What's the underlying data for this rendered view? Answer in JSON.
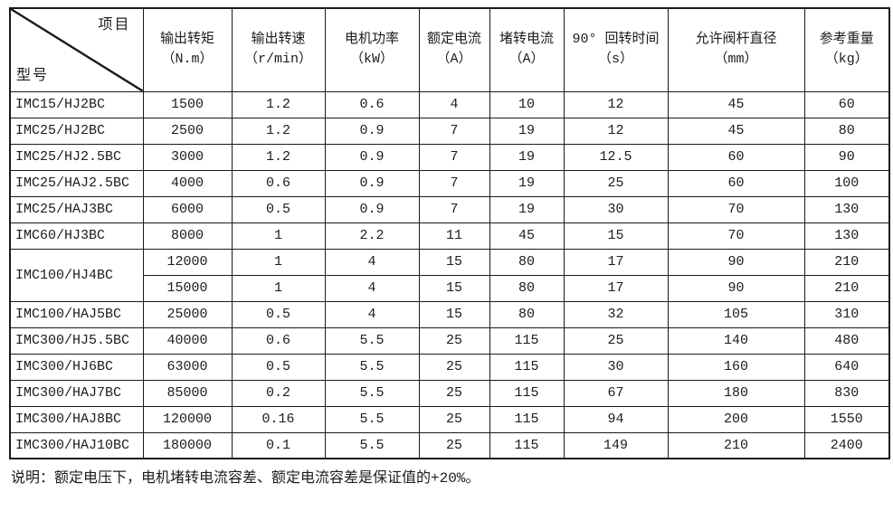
{
  "table": {
    "corner": {
      "top_right": "项目",
      "bottom_left": "型号"
    },
    "columns": [
      {
        "label": "输出转矩",
        "unit": "（N.m）"
      },
      {
        "label": "输出转速",
        "unit": "（r/min）"
      },
      {
        "label": "电机功率",
        "unit": "（kW）"
      },
      {
        "label": "额定电流",
        "unit": "（A）"
      },
      {
        "label": "堵转电流",
        "unit": "（A）"
      },
      {
        "label": "90° 回转时间",
        "unit": "（s）"
      },
      {
        "label": "允许阀杆直径",
        "unit": "（mm）"
      },
      {
        "label": "参考重量",
        "unit": "（kg）"
      }
    ],
    "rows": [
      {
        "model": "IMC15/HJ2BC",
        "model_rowspan": 1,
        "values": [
          "1500",
          "1.2",
          "0.6",
          "4",
          "10",
          "12",
          "45",
          "60"
        ]
      },
      {
        "model": "IMC25/HJ2BC",
        "model_rowspan": 1,
        "values": [
          "2500",
          "1.2",
          "0.9",
          "7",
          "19",
          "12",
          "45",
          "80"
        ]
      },
      {
        "model": "IMC25/HJ2.5BC",
        "model_rowspan": 1,
        "values": [
          "3000",
          "1.2",
          "0.9",
          "7",
          "19",
          "12.5",
          "60",
          "90"
        ]
      },
      {
        "model": "IMC25/HAJ2.5BC",
        "model_rowspan": 1,
        "values": [
          "4000",
          "0.6",
          "0.9",
          "7",
          "19",
          "25",
          "60",
          "100"
        ]
      },
      {
        "model": "IMC25/HAJ3BC",
        "model_rowspan": 1,
        "values": [
          "6000",
          "0.5",
          "0.9",
          "7",
          "19",
          "30",
          "70",
          "130"
        ]
      },
      {
        "model": "IMC60/HJ3BC",
        "model_rowspan": 1,
        "values": [
          "8000",
          "1",
          "2.2",
          "11",
          "45",
          "15",
          "70",
          "130"
        ]
      },
      {
        "model": "IMC100/HJ4BC",
        "model_rowspan": 2,
        "values": [
          "12000",
          "1",
          "4",
          "15",
          "80",
          "17",
          "90",
          "210"
        ]
      },
      {
        "model": null,
        "model_rowspan": 0,
        "values": [
          "15000",
          "1",
          "4",
          "15",
          "80",
          "17",
          "90",
          "210"
        ]
      },
      {
        "model": "IMC100/HAJ5BC",
        "model_rowspan": 1,
        "values": [
          "25000",
          "0.5",
          "4",
          "15",
          "80",
          "32",
          "105",
          "310"
        ]
      },
      {
        "model": "IMC300/HJ5.5BC",
        "model_rowspan": 1,
        "values": [
          "40000",
          "0.6",
          "5.5",
          "25",
          "115",
          "25",
          "140",
          "480"
        ]
      },
      {
        "model": "IMC300/HJ6BC",
        "model_rowspan": 1,
        "values": [
          "63000",
          "0.5",
          "5.5",
          "25",
          "115",
          "30",
          "160",
          "640"
        ]
      },
      {
        "model": "IMC300/HAJ7BC",
        "model_rowspan": 1,
        "values": [
          "85000",
          "0.2",
          "5.5",
          "25",
          "115",
          "67",
          "180",
          "830"
        ]
      },
      {
        "model": "IMC300/HAJ8BC",
        "model_rowspan": 1,
        "values": [
          "120000",
          "0.16",
          "5.5",
          "25",
          "115",
          "94",
          "200",
          "1550"
        ]
      },
      {
        "model": "IMC300/HAJ10BC",
        "model_rowspan": 1,
        "values": [
          "180000",
          "0.1",
          "5.5",
          "25",
          "115",
          "149",
          "210",
          "2400"
        ]
      }
    ],
    "note": "说明：额定电压下，电机堵转电流容差、额定电流容差是保证值的+20%。"
  }
}
